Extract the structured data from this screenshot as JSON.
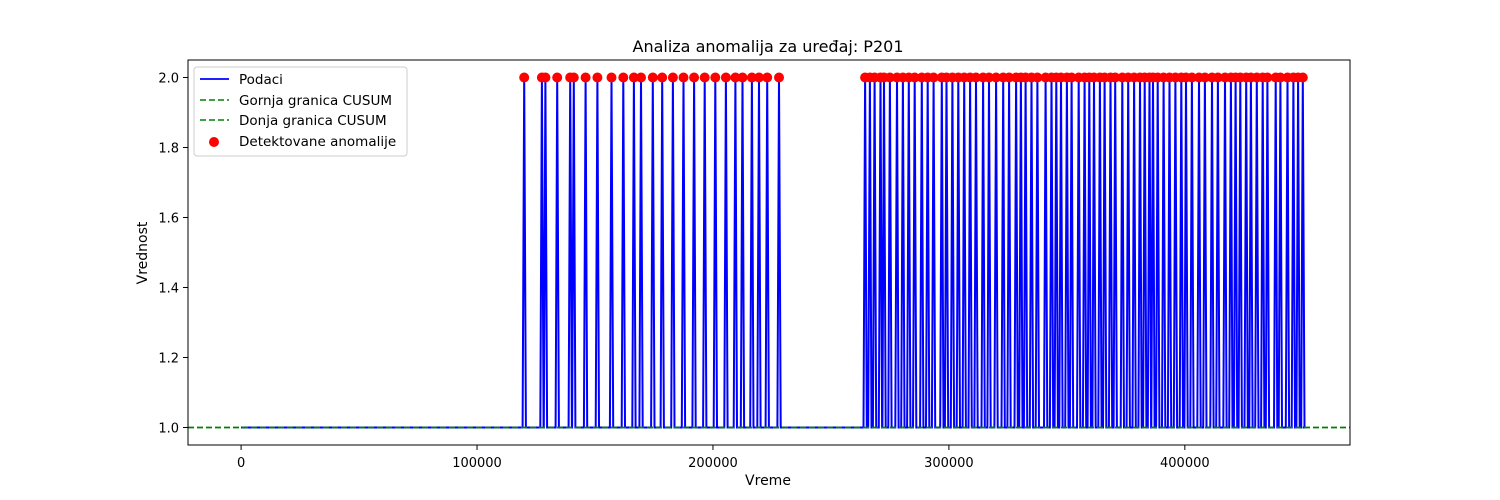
{
  "chart_data": {
    "type": "line",
    "title": "Analiza anomalija za uređaj: P201",
    "xlabel": "Vreme",
    "ylabel": "Vrednost",
    "xlim": [
      -22500,
      470000
    ],
    "ylim": [
      0.95,
      2.05
    ],
    "x_ticks": [
      0,
      100000,
      200000,
      300000,
      400000
    ],
    "y_ticks": [
      1.0,
      1.2,
      1.4,
      1.6,
      1.8,
      2.0
    ],
    "x_tick_labels": [
      "0",
      "100000",
      "200000",
      "300000",
      "400000"
    ],
    "y_tick_labels": [
      "1.0",
      "1.2",
      "1.4",
      "1.6",
      "1.8",
      "2.0"
    ],
    "legend_position": "upper-left",
    "grid": false,
    "baseline_value": 1.0,
    "spike_value": 2.0,
    "x_range_data": [
      0,
      450000
    ],
    "anomaly_x": [
      120000,
      127500,
      129000,
      134000,
      139500,
      141000,
      146000,
      151000,
      157000,
      162000,
      166500,
      169500,
      174500,
      178500,
      183000,
      187500,
      192000,
      196500,
      201000,
      205500,
      209500,
      212500,
      216500,
      219500,
      223000,
      228000,
      264500,
      266500,
      268500,
      271000,
      272500,
      275000,
      278000,
      280500,
      283000,
      285500,
      288500,
      291000,
      293500,
      297000,
      299000,
      301500,
      304000,
      306500,
      309000,
      311500,
      314500,
      317000,
      320000,
      323000,
      325500,
      328500,
      330500,
      332500,
      335000,
      337500,
      341000,
      343500,
      345500,
      347500,
      350000,
      352000,
      355000,
      357500,
      359500,
      361500,
      364000,
      366000,
      368500,
      370500,
      373500,
      376000,
      378500,
      381000,
      383000,
      385000,
      386500,
      388500,
      391000,
      393500,
      396000,
      398500,
      400500,
      403000,
      406000,
      408500,
      411500,
      414000,
      417000,
      419500,
      421500,
      423500,
      426000,
      428000,
      430500,
      433000,
      435000,
      438500,
      440500,
      443500,
      446000,
      448000,
      450000
    ],
    "series": [
      {
        "name": "Podaci",
        "kind": "line",
        "color": "#0000ff"
      },
      {
        "name": "Gornja granica CUSUM",
        "kind": "hline",
        "value": 1.0,
        "color": "#008000",
        "dash": true
      },
      {
        "name": "Donja granica CUSUM",
        "kind": "hline",
        "value": 1.0,
        "color": "#008000",
        "dash": true
      },
      {
        "name": "Detektovane anomalije",
        "kind": "scatter",
        "color": "#ff0000"
      }
    ]
  }
}
